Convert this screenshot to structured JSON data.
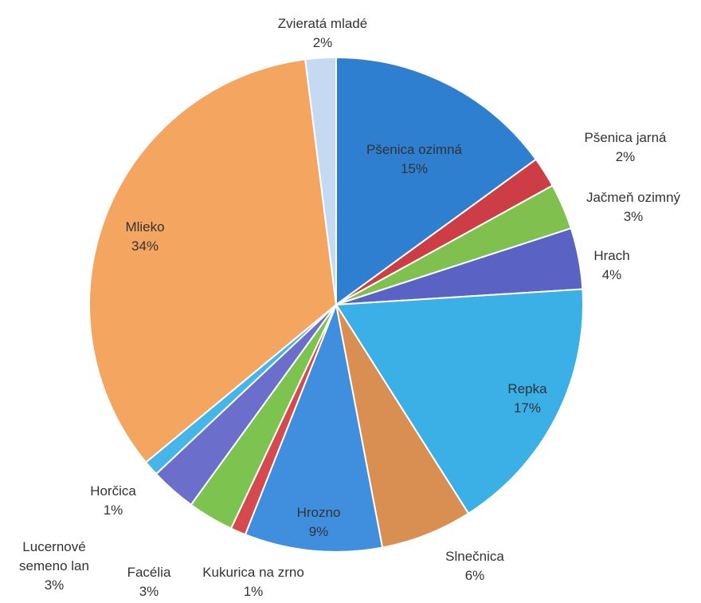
{
  "chart_data": {
    "type": "pie",
    "categories": [
      "Pšenica ozimná",
      "Pšenica jarná",
      "Jačmeň ozimný",
      "Hrach",
      "Repka",
      "Slnečnica",
      "Hrozno",
      "Kukurica na zrno",
      "Facélia",
      "Lucernové semeno lan",
      "Horčica",
      "Mlieko",
      "Zvieratá mladé"
    ],
    "values": [
      15,
      2,
      3,
      4,
      17,
      6,
      9,
      1,
      3,
      3,
      1,
      34,
      2
    ],
    "value_labels": [
      "15%",
      "2%",
      "3%",
      "4%",
      "17%",
      "6%",
      "9%",
      "1%",
      "3%",
      "3%",
      "1%",
      "34%",
      "2%"
    ],
    "colors": [
      "#2e7fd0",
      "#cc3d45",
      "#7fc04f",
      "#5a62c4",
      "#3ab0e6",
      "#d98f52",
      "#3f8fde",
      "#d54a4e",
      "#7dc34f",
      "#6b6ecb",
      "#45b5ea",
      "#f4a55f",
      "#c5d9f2"
    ]
  }
}
